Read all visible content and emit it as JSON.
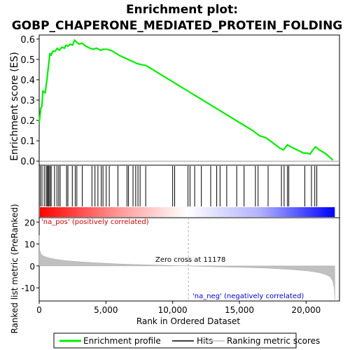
{
  "chart_data": [
    {
      "type": "line",
      "title": "Enrichment plot:\nGOBP_CHAPERONE_MEDIATED_PROTEIN_FOLDING",
      "title_lines": [
        "Enrichment plot:",
        "GOBP_CHAPERONE_MEDIATED_PROTEIN_FOLDING"
      ],
      "ylabel": "Enrichment score (ES)",
      "xlim": [
        0,
        22500
      ],
      "ylim": [
        -0.02,
        0.62
      ],
      "y_ticks": [
        0.0,
        0.1,
        0.2,
        0.3,
        0.4,
        0.5,
        0.6
      ],
      "y_tick_labels": [
        "0.0",
        "0.1",
        "0.2",
        "0.3",
        "0.4",
        "0.5",
        "0.6"
      ],
      "grid": false,
      "series": [
        {
          "name": "Enrichment profile",
          "color": "#00ee00",
          "x": [
            0,
            120,
            200,
            280,
            450,
            500,
            600,
            700,
            800,
            900,
            1000,
            1200,
            1350,
            1500,
            1700,
            1900,
            2000,
            2150,
            2300,
            2500,
            2650,
            2800,
            3000,
            3200,
            3500,
            3800,
            4000,
            4300,
            4600,
            4800,
            5000,
            5200,
            5500,
            6000,
            6500,
            6800,
            7000,
            7300,
            7600,
            8000,
            9000,
            10000,
            11000,
            12000,
            13000,
            14000,
            15000,
            16000,
            16500,
            17000,
            17500,
            18000,
            18300,
            18600,
            19000,
            19500,
            19800,
            20000,
            20300,
            20500,
            20700,
            21000,
            21500,
            22000
          ],
          "y": [
            0.19,
            0.26,
            0.27,
            0.345,
            0.335,
            0.36,
            0.41,
            0.47,
            0.53,
            0.52,
            0.54,
            0.54,
            0.555,
            0.545,
            0.56,
            0.555,
            0.57,
            0.565,
            0.575,
            0.57,
            0.595,
            0.585,
            0.575,
            0.58,
            0.565,
            0.555,
            0.55,
            0.555,
            0.545,
            0.55,
            0.55,
            0.548,
            0.54,
            0.52,
            0.505,
            0.495,
            0.49,
            0.48,
            0.475,
            0.47,
            0.43,
            0.39,
            0.35,
            0.31,
            0.27,
            0.23,
            0.19,
            0.15,
            0.125,
            0.115,
            0.09,
            0.065,
            0.055,
            0.08,
            0.065,
            0.05,
            0.04,
            0.04,
            0.035,
            0.055,
            0.07,
            0.055,
            0.035,
            0.005
          ]
        }
      ]
    },
    {
      "type": "hits",
      "hit_positions": [
        90,
        210,
        380,
        520,
        600,
        680,
        730,
        820,
        900,
        1150,
        1330,
        1460,
        1570,
        2050,
        2150,
        2480,
        2700,
        2820,
        3230,
        3950,
        4180,
        4400,
        4650,
        4780,
        5020,
        5250,
        5900,
        6580,
        6690,
        7030,
        7230,
        7400,
        7560,
        7980,
        10000,
        10150,
        11150,
        11300,
        11650,
        12150,
        12850,
        13300,
        13550,
        14050,
        14800,
        15350,
        16200,
        16400,
        17150,
        18150,
        18350,
        18600,
        18700,
        19900,
        20400,
        20650,
        20800
      ],
      "rank_bar_colors": [
        "#ff0000",
        "#ffffff",
        "#0000ff"
      ]
    },
    {
      "type": "area",
      "ylabel": "Ranked list metric (PreRanked)",
      "xlabel": "Rank in Ordered Dataset",
      "xlim": [
        0,
        22500
      ],
      "ylim": [
        -16,
        22
      ],
      "y_ticks": [
        -10,
        0,
        10,
        20
      ],
      "y_tick_labels": [
        "-10",
        "0",
        "10",
        "20"
      ],
      "x_ticks": [
        0,
        5000,
        10000,
        15000,
        20000
      ],
      "x_tick_labels": [
        "0",
        "5,000",
        "10,000",
        "15,000",
        "20,000"
      ],
      "zero_cross": 11178,
      "zero_cross_label": "Zero cross at 11178",
      "pos_label": "'na_pos' (positively correlated)",
      "neg_label": "'na_neg' (negatively correlated)",
      "series": [
        {
          "name": "Ranking metric scores",
          "color": "#c0c0c0",
          "x": [
            0,
            30,
            100,
            200,
            400,
            700,
            1000,
            1500,
            2000,
            3000,
            4000,
            5000,
            6000,
            7000,
            8000,
            9000,
            10000,
            11178,
            12000,
            13000,
            14000,
            15000,
            16000,
            17000,
            18000,
            19000,
            20000,
            20500,
            21000,
            21500,
            21800,
            22000,
            22100,
            22150
          ],
          "values": [
            14,
            7.5,
            6,
            5,
            4.3,
            3.7,
            3.3,
            2.8,
            2.4,
            1.9,
            1.5,
            1.2,
            0.9,
            0.7,
            0.5,
            0.35,
            0.15,
            0,
            -0.2,
            -0.35,
            -0.5,
            -0.65,
            -0.8,
            -1.0,
            -1.3,
            -1.7,
            -2.2,
            -2.6,
            -3.1,
            -4.0,
            -5.0,
            -7.0,
            -10.0,
            -15.5
          ]
        }
      ]
    }
  ],
  "legend": {
    "items": [
      {
        "label": "Enrichment profile",
        "color": "#00ee00",
        "kind": "line"
      },
      {
        "label": "Hits",
        "color": "#000000",
        "kind": "line"
      },
      {
        "label": "Ranking metric scores",
        "color": "#c0c0c0",
        "kind": "line"
      }
    ]
  }
}
